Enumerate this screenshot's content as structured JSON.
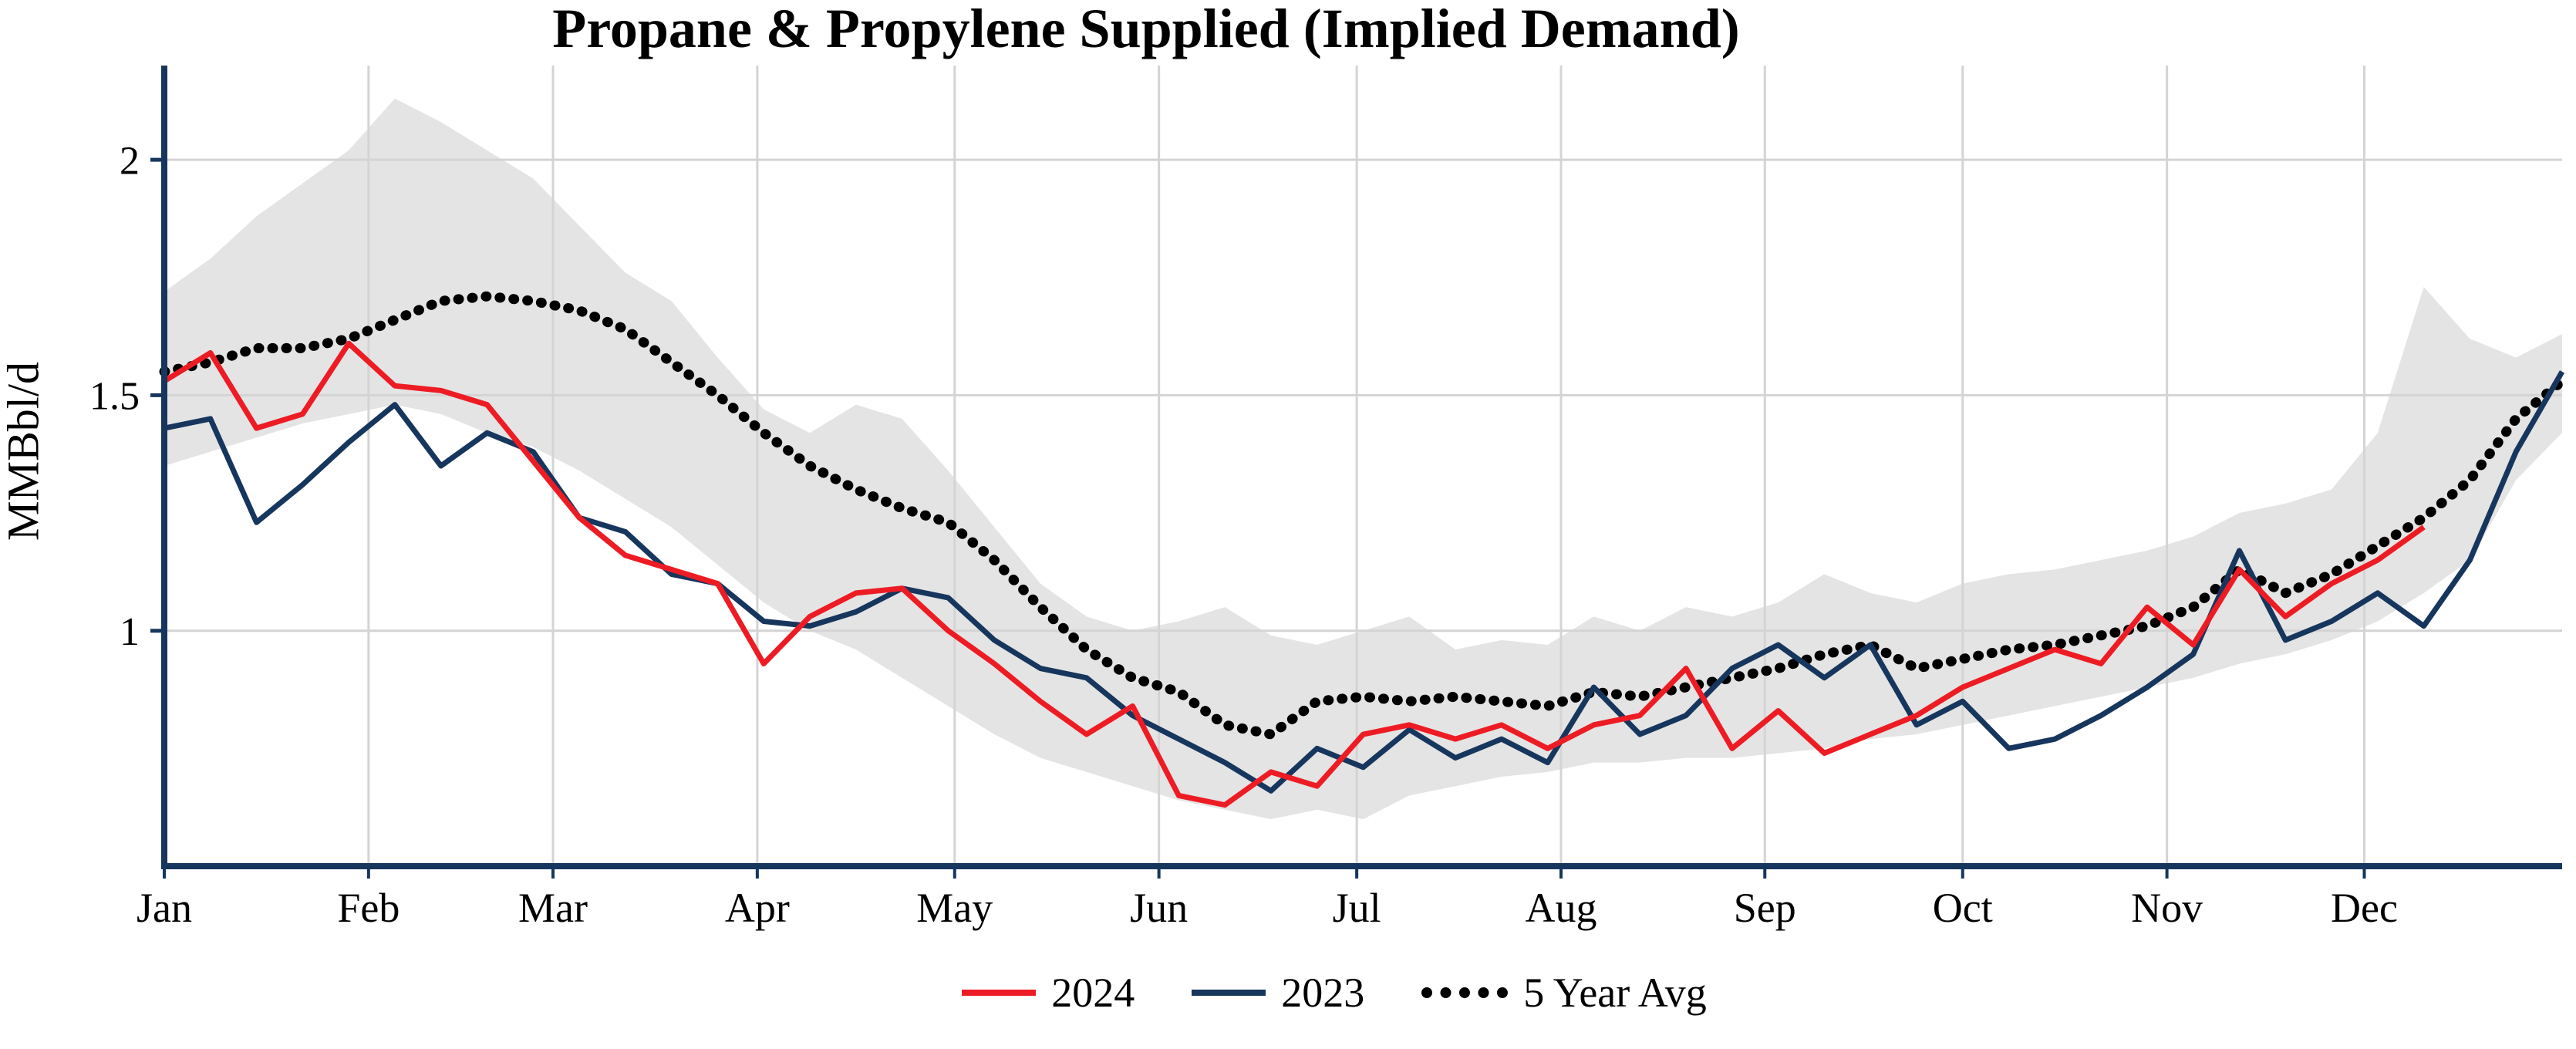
{
  "chart_data": {
    "type": "line",
    "title": "Propane & Propylene Supplied (Implied Demand)",
    "xlabel": "",
    "ylabel": "MMBbl/d",
    "x_unit": "week_of_year",
    "xlim_weeks": [
      0,
      52
    ],
    "ylim": [
      0.5,
      2.2
    ],
    "grid": true,
    "legend_position": "bottom",
    "axis_color": "#17365d",
    "grid_color": "#d4d4d4",
    "months": [
      "Jan",
      "Feb",
      "Mar",
      "Apr",
      "May",
      "Jun",
      "Jul",
      "Aug",
      "Sep",
      "Oct",
      "Nov",
      "Dec"
    ],
    "month_start_weeks": [
      0,
      4.43,
      8.43,
      12.86,
      17.14,
      21.57,
      25.86,
      30.29,
      34.71,
      39.0,
      43.43,
      47.71
    ],
    "yticks": [
      1,
      1.5,
      2
    ],
    "ytick_labels": [
      "1",
      "1.5",
      "2"
    ],
    "band": {
      "color": "#e4e4e4",
      "upper": [
        1.72,
        1.79,
        1.88,
        1.95,
        2.02,
        2.13,
        2.08,
        2.02,
        1.96,
        1.86,
        1.76,
        1.7,
        1.58,
        1.47,
        1.42,
        1.48,
        1.45,
        1.34,
        1.22,
        1.1,
        1.03,
        1.0,
        1.02,
        1.05,
        0.99,
        0.97,
        1.0,
        1.03,
        0.96,
        0.98,
        0.97,
        1.03,
        1.0,
        1.05,
        1.03,
        1.06,
        1.12,
        1.08,
        1.06,
        1.1,
        1.12,
        1.13,
        1.15,
        1.17,
        1.2,
        1.25,
        1.27,
        1.3,
        1.42,
        1.73,
        1.62,
        1.58,
        1.63
      ],
      "lower": [
        1.35,
        1.38,
        1.41,
        1.44,
        1.46,
        1.48,
        1.46,
        1.42,
        1.39,
        1.34,
        1.28,
        1.22,
        1.14,
        1.06,
        1.0,
        0.96,
        0.9,
        0.84,
        0.78,
        0.73,
        0.7,
        0.67,
        0.64,
        0.62,
        0.6,
        0.62,
        0.6,
        0.65,
        0.67,
        0.69,
        0.7,
        0.72,
        0.72,
        0.73,
        0.73,
        0.74,
        0.75,
        0.77,
        0.78,
        0.8,
        0.82,
        0.84,
        0.86,
        0.88,
        0.9,
        0.93,
        0.95,
        0.98,
        1.02,
        1.08,
        1.15,
        1.32,
        1.42
      ]
    },
    "series": [
      {
        "name": "2024",
        "color": "#ed1c24",
        "style": "solid",
        "values": [
          1.53,
          1.59,
          1.43,
          1.46,
          1.61,
          1.52,
          1.51,
          1.48,
          1.36,
          1.24,
          1.16,
          1.13,
          1.1,
          0.93,
          1.03,
          1.08,
          1.09,
          1.0,
          0.93,
          0.85,
          0.78,
          0.84,
          0.65,
          0.63,
          0.7,
          0.67,
          0.78,
          0.8,
          0.77,
          0.8,
          0.75,
          0.8,
          0.82,
          0.92,
          0.75,
          0.83,
          0.74,
          0.78,
          0.82,
          0.88,
          0.92,
          0.96,
          0.93,
          1.05,
          0.97,
          1.13,
          1.03,
          1.1,
          1.15,
          1.22
        ]
      },
      {
        "name": "2023",
        "color": "#17365d",
        "style": "solid",
        "values": [
          1.43,
          1.45,
          1.23,
          1.31,
          1.4,
          1.48,
          1.35,
          1.42,
          1.38,
          1.24,
          1.21,
          1.12,
          1.1,
          1.02,
          1.01,
          1.04,
          1.09,
          1.07,
          0.98,
          0.92,
          0.9,
          0.82,
          0.77,
          0.72,
          0.66,
          0.75,
          0.71,
          0.79,
          0.73,
          0.77,
          0.72,
          0.88,
          0.78,
          0.82,
          0.92,
          0.97,
          0.9,
          0.97,
          0.8,
          0.85,
          0.75,
          0.77,
          0.82,
          0.88,
          0.95,
          1.17,
          0.98,
          1.02,
          1.08,
          1.01,
          1.15,
          1.38,
          1.55
        ]
      },
      {
        "name": "5 Year Avg",
        "color": "#000000",
        "style": "dotted",
        "values": [
          1.55,
          1.57,
          1.6,
          1.6,
          1.62,
          1.66,
          1.7,
          1.71,
          1.7,
          1.68,
          1.64,
          1.57,
          1.5,
          1.42,
          1.35,
          1.3,
          1.26,
          1.23,
          1.15,
          1.05,
          0.96,
          0.9,
          0.87,
          0.8,
          0.78,
          0.85,
          0.86,
          0.85,
          0.86,
          0.85,
          0.84,
          0.87,
          0.86,
          0.88,
          0.9,
          0.92,
          0.95,
          0.97,
          0.92,
          0.94,
          0.96,
          0.97,
          0.99,
          1.01,
          1.05,
          1.13,
          1.08,
          1.12,
          1.18,
          1.24,
          1.32,
          1.45,
          1.53
        ]
      }
    ]
  }
}
